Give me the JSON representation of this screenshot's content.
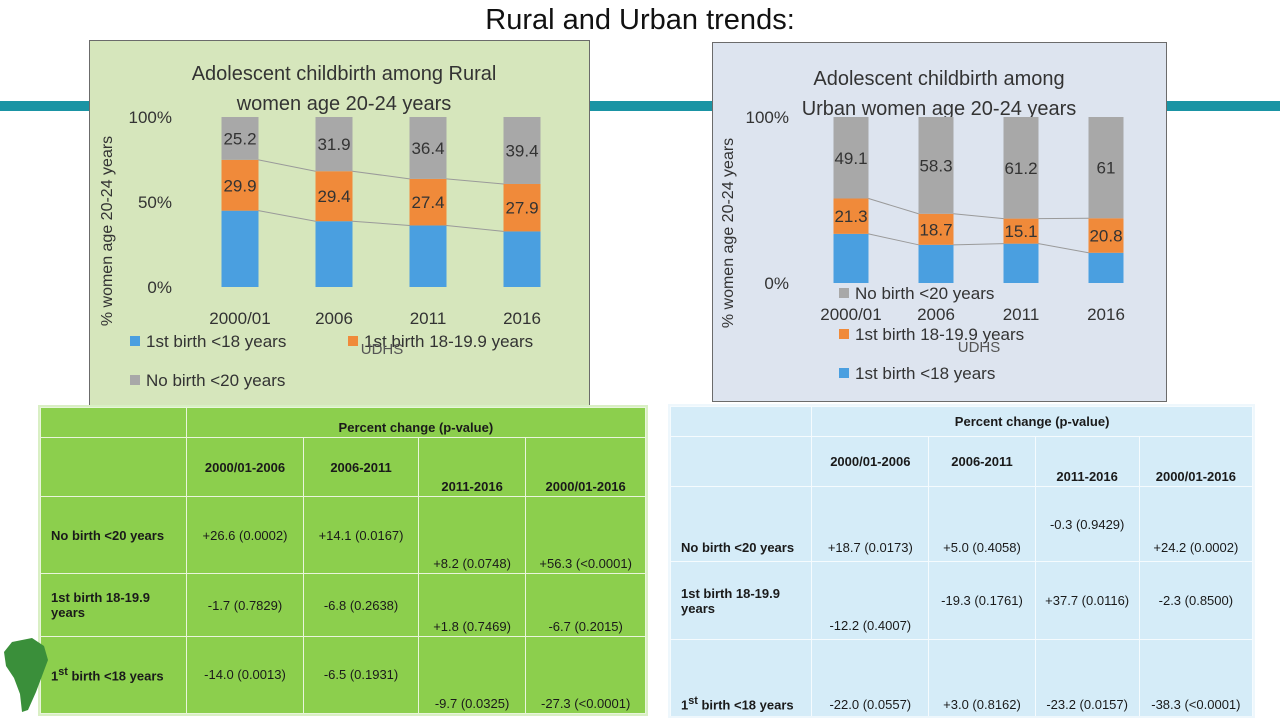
{
  "slide": {
    "title": "Rural and Urban trends:"
  },
  "colors": {
    "first_lt18": "#4a9fe0",
    "first_18_19": "#f08a3a",
    "no_birth": "#a8a8a8",
    "teal": "#1a94a4"
  },
  "chart_data": [
    {
      "type": "bar",
      "stacked": "percent",
      "title": "Adolescent childbirth among Rural women age 20-24 years",
      "title_lines": [
        "Adolescent childbirth among Rural",
        "women age 20-24 years"
      ],
      "xlabel": "UDHS",
      "ylabel": "% women age 20-24 years",
      "yticks": [
        "100%",
        "50%",
        "0%"
      ],
      "ylim": [
        0,
        100
      ],
      "categories": [
        "2000/01",
        "2006",
        "2011",
        "2016"
      ],
      "series": [
        {
          "name": "1st birth <18 years",
          "values": [
            44.9,
            38.7,
            36.2,
            32.7
          ],
          "color": "#4a9fe0"
        },
        {
          "name": "1st birth 18-19.9 years",
          "values": [
            29.9,
            29.4,
            27.4,
            27.9
          ],
          "color": "#f08a3a"
        },
        {
          "name": "No birth <20 years",
          "values": [
            25.2,
            31.9,
            36.4,
            39.4
          ],
          "color": "#a8a8a8"
        }
      ],
      "data_labels": [
        [
          "29.9",
          "29.4",
          "27.4",
          "27.9"
        ],
        [
          "25.2",
          "31.9",
          "36.4",
          "39.4"
        ]
      ],
      "legend": "bottom"
    },
    {
      "type": "bar",
      "stacked": "percent",
      "title": "Adolescent childbirth among Urban women age 20-24 years",
      "title_lines": [
        "Adolescent childbirth among",
        "Urban women age 20-24 years"
      ],
      "xlabel": "UDHS",
      "ylabel": "% women age 20-24 years",
      "yticks": [
        "100%",
        "0%"
      ],
      "ylim": [
        0,
        100
      ],
      "categories": [
        "2000/01",
        "2006",
        "2011",
        "2016"
      ],
      "series": [
        {
          "name": "1st birth <18 years",
          "values": [
            29.6,
            23.0,
            23.7,
            18.2
          ],
          "color": "#4a9fe0"
        },
        {
          "name": "1st birth 18-19.9 years",
          "values": [
            21.3,
            18.7,
            15.1,
            20.8
          ],
          "color": "#f08a3a"
        },
        {
          "name": "No birth <20 years",
          "values": [
            49.1,
            58.3,
            61.2,
            61.0
          ],
          "color": "#a8a8a8"
        }
      ],
      "data_labels": [
        [
          "21.3",
          "18.7",
          "15.1",
          "20.8"
        ],
        [
          "49.1",
          "58.3",
          "61.2",
          "61"
        ]
      ],
      "legend": "bottom"
    }
  ],
  "rural_table": {
    "group_header": "Percent change (p-value)",
    "columns": [
      "2000/01-2006",
      "2006-2011",
      "2011-2016",
      "2000/01-2016"
    ],
    "rows": [
      {
        "label": "No birth <20 years",
        "cells": [
          "+26.6 (0.0002)",
          "+14.1 (0.0167)",
          "+8.2 (0.0748)",
          "+56.3 (<0.0001)"
        ]
      },
      {
        "label": "1st birth 18-19.9 years",
        "cells": [
          "-1.7 (0.7829)",
          "-6.8 (0.2638)",
          "+1.8 (0.7469)",
          "-6.7 (0.2015)"
        ]
      },
      {
        "label": "1st birth <18 years",
        "cells": [
          "-14.0 (0.0013)",
          "-6.5 (0.1931)",
          "-9.7 (0.0325)",
          "-27.3 (<0.0001)"
        ]
      }
    ]
  },
  "urban_table": {
    "group_header": "Percent change (p-value)",
    "columns": [
      "2000/01-2006",
      "2006-2011",
      "2011-2016",
      "2000/01-2016"
    ],
    "rows": [
      {
        "label": "No birth <20 years",
        "cells": [
          "+18.7 (0.0173)",
          "+5.0 (0.4058)",
          "-0.3 (0.9429)",
          "+24.2 (0.0002)"
        ]
      },
      {
        "label": "1st birth 18-19.9 years",
        "cells": [
          "-12.2 (0.4007)",
          "-19.3 (0.1761)",
          "+37.7 (0.0116)",
          "-2.3 (0.8500)"
        ]
      },
      {
        "label": "1st birth <18 years",
        "cells": [
          "-22.0 (0.0557)",
          "+3.0 (0.8162)",
          "-23.2 (0.0157)",
          "-38.3 (<0.0001)"
        ]
      }
    ]
  }
}
